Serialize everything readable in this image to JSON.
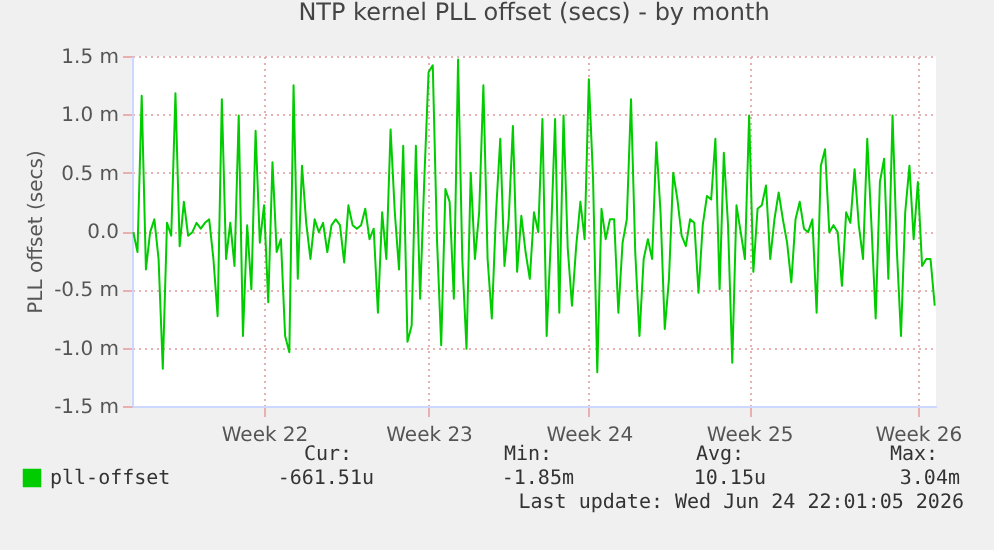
{
  "chart_data": {
    "type": "line",
    "title": "NTP kernel PLL offset (secs) - by month",
    "ylabel": "PLL offset (secs)",
    "categories": [
      null,
      null,
      null,
      null,
      null,
      null,
      null,
      null,
      null,
      null,
      null,
      null,
      null,
      null,
      null,
      null,
      null,
      null,
      null,
      null,
      null,
      null,
      null,
      null,
      null,
      null,
      null,
      null,
      null,
      null,
      null,
      "Week 22",
      null,
      null,
      null,
      null,
      null,
      null,
      null,
      null,
      null,
      null,
      null,
      null,
      null,
      null,
      null,
      null,
      null,
      null,
      null,
      null,
      null,
      null,
      null,
      null,
      null,
      null,
      null,
      null,
      null,
      null,
      null,
      null,
      null,
      null,
      null,
      null,
      null,
      null,
      "Week 23",
      null,
      null,
      null,
      null,
      null,
      null,
      null,
      null,
      null,
      null,
      null,
      null,
      null,
      null,
      null,
      null,
      null,
      null,
      null,
      null,
      null,
      null,
      null,
      null,
      null,
      null,
      null,
      null,
      null,
      null,
      null,
      null,
      null,
      null,
      null,
      null,
      null,
      "Week 24",
      null,
      null,
      null,
      null,
      null,
      null,
      null,
      null,
      null,
      null,
      null,
      null,
      null,
      null,
      null,
      null,
      null,
      null,
      null,
      null,
      null,
      null,
      null,
      null,
      null,
      null,
      null,
      null,
      null,
      null,
      null,
      null,
      null,
      null,
      null,
      null,
      null,
      "Week 25",
      null,
      null,
      null,
      null,
      null,
      null,
      null,
      null,
      null,
      null,
      null,
      null,
      null,
      null,
      null,
      null,
      null,
      null,
      null,
      null,
      null,
      null,
      null,
      null,
      null,
      null,
      null,
      null,
      null,
      null,
      null,
      null,
      null,
      null,
      null,
      null,
      null,
      null,
      null,
      "Week 26",
      null,
      null,
      null,
      null
    ],
    "series": [
      {
        "name": "pll-offset",
        "color": "#00cc00",
        "values": [
          -0.01,
          -0.18,
          1.16,
          -0.33,
          -0.01,
          0.1,
          -0.24,
          -1.18,
          0.07,
          -0.04,
          1.18,
          -0.13,
          0.25,
          -0.04,
          -0.01,
          0.07,
          0.02,
          0.07,
          0.1,
          -0.24,
          -0.73,
          1.13,
          -0.24,
          0.07,
          -0.3,
          0.99,
          -0.9,
          0.05,
          -0.5,
          0.86,
          -0.1,
          0.22,
          -0.61,
          0.59,
          -0.18,
          -0.07,
          -0.9,
          -1.04,
          1.25,
          -0.41,
          0.56,
          0.07,
          -0.24,
          0.1,
          -0.01,
          0.07,
          -0.18,
          0.05,
          0.1,
          0.05,
          -0.27,
          0.22,
          0.05,
          0.02,
          0.05,
          0.19,
          -0.07,
          0.02,
          -0.7,
          0.16,
          -0.24,
          0.87,
          0.16,
          -0.33,
          0.73,
          -0.95,
          -0.81,
          0.73,
          -0.58,
          0.45,
          1.36,
          1.42,
          -0.07,
          -0.98,
          0.36,
          0.25,
          -0.58,
          1.47,
          -0.24,
          -1.01,
          0.5,
          -0.24,
          0.16,
          1.25,
          -0.24,
          -0.75,
          0.16,
          0.79,
          -0.3,
          0.1,
          0.9,
          -0.35,
          0.13,
          -0.18,
          -0.41,
          0.16,
          -0.01,
          0.96,
          -0.9,
          -0.07,
          0.96,
          -0.7,
          0.99,
          -0.15,
          -0.64,
          -0.13,
          0.25,
          -0.07,
          1.3,
          0.45,
          -1.21,
          0.19,
          -0.07,
          0.1,
          0.1,
          -0.7,
          -0.1,
          0.1,
          1.13,
          -0.18,
          -0.9,
          -0.24,
          -0.07,
          -0.24,
          0.76,
          0.16,
          -0.84,
          -0.41,
          0.5,
          0.27,
          -0.04,
          -0.13,
          0.1,
          0.07,
          -0.53,
          0.05,
          0.3,
          0.27,
          0.79,
          -0.5,
          0.67,
          0.05,
          -1.13,
          0.22,
          -0.01,
          -0.24,
          0.99,
          -0.35,
          0.19,
          0.22,
          0.39,
          -0.24,
          0.1,
          0.33,
          0.1,
          -0.1,
          -0.44,
          0.1,
          0.25,
          0.02,
          -0.01,
          0.1,
          -0.7,
          0.56,
          0.7,
          -0.01,
          0.05,
          -0.01,
          -0.47,
          0.16,
          0.07,
          0.53,
          0.05,
          -0.24,
          0.79,
          0.05,
          -0.75,
          0.42,
          0.62,
          -0.41,
          0.99,
          -0.15,
          -0.9,
          0.16,
          0.56,
          -0.07,
          0.42,
          -0.3,
          -0.24,
          -0.24,
          -0.64
        ]
      }
    ],
    "ylim": [
      -1.5,
      1.5
    ],
    "yticks": [
      {
        "value": -1.5,
        "label": "-1.5 m"
      },
      {
        "value": -1.0,
        "label": "-1.0 m"
      },
      {
        "value": -0.5,
        "label": "-0.5 m"
      },
      {
        "value": 0,
        "label": "0.0"
      },
      {
        "value": 0.5,
        "label": "0.5 m"
      },
      {
        "value": 1.0,
        "label": "1.0 m"
      },
      {
        "value": 1.5,
        "label": "1.5 m"
      }
    ],
    "grid": true,
    "legend": "bottom left",
    "marker": "none",
    "line_style": "solid",
    "annotations": [
      "Cur:",
      "Min:",
      "Avg:",
      "Max:",
      "-661.51u",
      "-1.85m",
      "10.15u",
      "3.04m",
      "Last update: Wed Jun 24 22:01:05 2026"
    ]
  }
}
